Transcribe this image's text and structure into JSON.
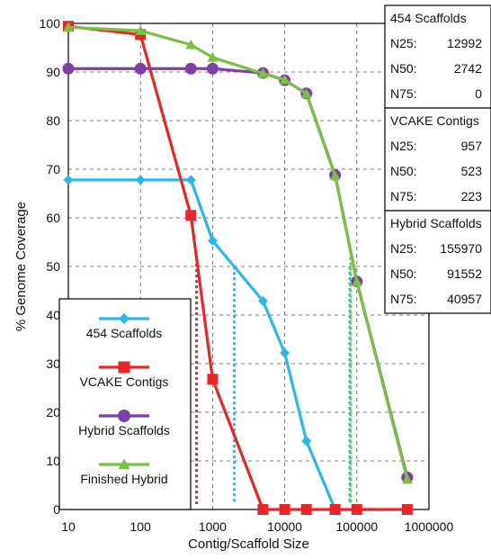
{
  "chart_data": {
    "type": "line",
    "xlabel": "Contig/Scaffold Size",
    "ylabel": "% Genome Coverage",
    "x_scale": "log",
    "xlim": [
      10,
      1000000
    ],
    "ylim": [
      0,
      100
    ],
    "x_ticks": [
      10,
      100,
      1000,
      10000,
      100000,
      1000000
    ],
    "x_tick_labels": [
      "10",
      "100",
      "1000",
      "10000",
      "100000",
      "1000000"
    ],
    "y_ticks": [
      0,
      10,
      20,
      30,
      40,
      50,
      60,
      70,
      80,
      90,
      100
    ],
    "y_tick_labels": [
      "0",
      "10",
      "20",
      "30",
      "40",
      "50",
      "60",
      "70",
      "80",
      "90",
      "100"
    ],
    "grid": "dashed",
    "legend_position": "bottom-left",
    "series": [
      {
        "name": "454 Scaffolds",
        "color": "#2ab8e6",
        "marker": "diamond",
        "x": [
          10,
          100,
          500,
          1000,
          5000,
          10000,
          20000,
          50000
        ],
        "y": [
          67.8,
          67.8,
          67.8,
          55.3,
          42.9,
          32.2,
          14.1,
          0
        ]
      },
      {
        "name": "VCAKE Contigs",
        "color": "#e8262a",
        "marker": "square",
        "x": [
          10,
          100,
          500,
          1000,
          5000,
          10000,
          20000,
          50000,
          100000,
          500000
        ],
        "y": [
          99.4,
          97.7,
          60.5,
          26.8,
          0,
          0,
          0,
          0,
          0,
          0
        ]
      },
      {
        "name": "Hybrid Scaffolds",
        "color": "#7e3fa6",
        "marker": "circle",
        "x": [
          10,
          100,
          500,
          1000,
          5000,
          10000,
          20000,
          50000,
          100000,
          500000
        ],
        "y": [
          90.7,
          90.7,
          90.7,
          90.7,
          89.8,
          88.3,
          85.6,
          68.8,
          46.9,
          6.6
        ]
      },
      {
        "name": "Finished Hybrid",
        "color": "#7ac142",
        "marker": "triangle",
        "x": [
          10,
          100,
          500,
          1000,
          5000,
          10000,
          20000,
          50000,
          100000,
          500000
        ],
        "y": [
          99.2,
          98.5,
          95.6,
          93.0,
          89.7,
          88.4,
          85.5,
          68.6,
          46.8,
          6.2
        ]
      }
    ],
    "reference_lines": [
      {
        "color": "#e8262a",
        "x": 600
      },
      {
        "color": "#2ab8e6",
        "x": 2000
      },
      {
        "color": "#2ab8e6",
        "x": 80000
      },
      {
        "color": "#7ac142",
        "x": 82000
      }
    ]
  },
  "stats_panels": [
    {
      "title": "454 Scaffolds",
      "rows": [
        {
          "label": "N25:",
          "value": "12992"
        },
        {
          "label": "N50:",
          "value": "2742"
        },
        {
          "label": "N75:",
          "value": "0"
        }
      ]
    },
    {
      "title": "VCAKE Contigs",
      "rows": [
        {
          "label": "N25:",
          "value": "957"
        },
        {
          "label": "N50:",
          "value": "523"
        },
        {
          "label": "N75:",
          "value": "223"
        }
      ]
    },
    {
      "title": "Hybrid Scaffolds",
      "rows": [
        {
          "label": "N25:",
          "value": "155970"
        },
        {
          "label": "N50:",
          "value": "91552"
        },
        {
          "label": "N75:",
          "value": "40957"
        }
      ]
    }
  ]
}
